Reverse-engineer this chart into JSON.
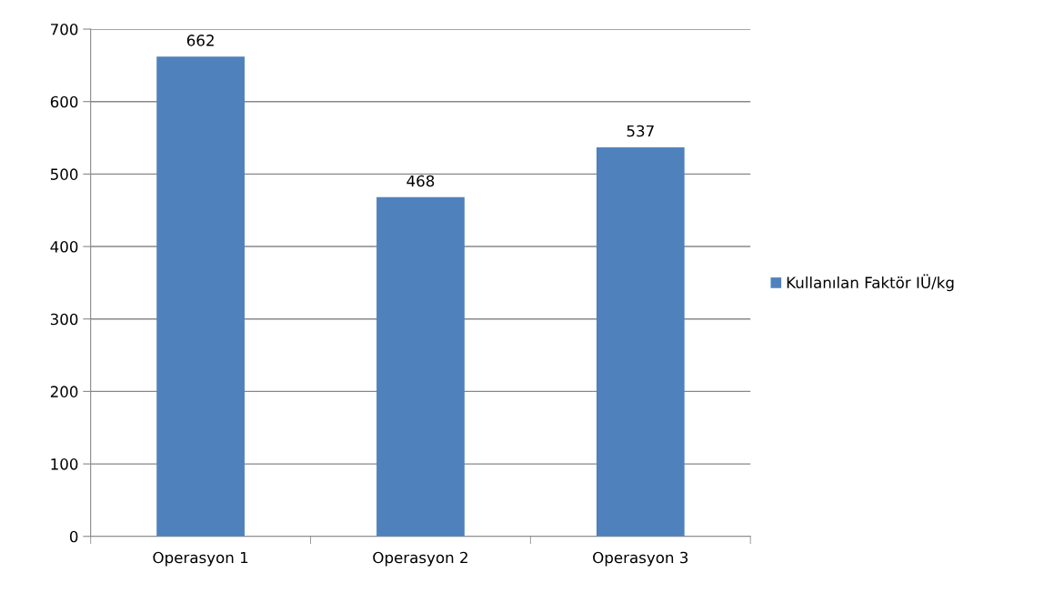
{
  "chart_data": {
    "type": "bar",
    "categories": [
      "Operasyon 1",
      "Operasyon 2",
      "Operasyon 3"
    ],
    "series": [
      {
        "name": "Kullanılan Faktör IÜ/kg",
        "color": "#4f81bd",
        "values": [
          662,
          468,
          537
        ]
      }
    ],
    "ylim": [
      0,
      700
    ],
    "yticks": [
      0,
      100,
      200,
      300,
      400,
      500,
      600,
      700
    ],
    "grid": "y",
    "legend": "right",
    "data_labels": true
  }
}
